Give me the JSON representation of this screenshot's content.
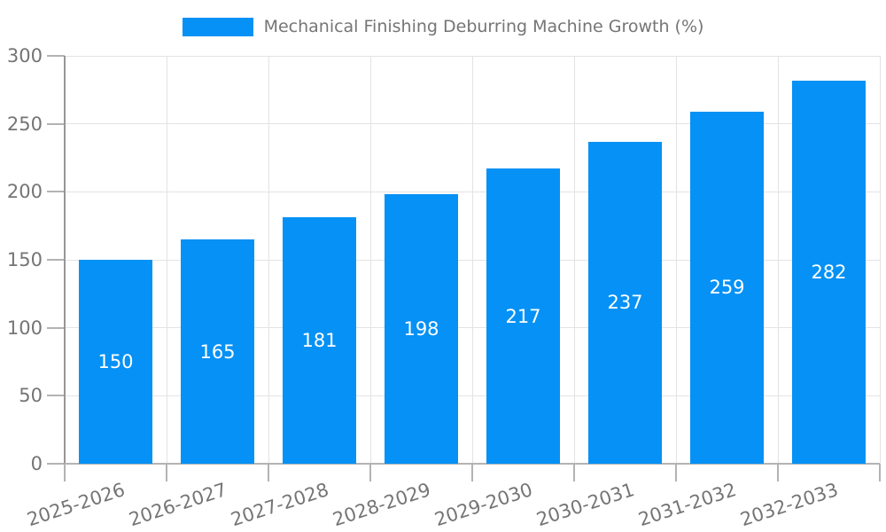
{
  "chart_data": {
    "type": "bar",
    "title": "Mechanical Finishing Deburring Machine Growth (%)",
    "categories": [
      "2025-2026",
      "2026-2027",
      "2027-2028",
      "2028-2029",
      "2029-2030",
      "2030-2031",
      "2031-2032",
      "2032-2033"
    ],
    "values": [
      150,
      165,
      181,
      198,
      217,
      237,
      259,
      282
    ],
    "xlabel": "",
    "ylabel": "",
    "ylim": [
      0,
      300
    ],
    "yticks": [
      0,
      50,
      100,
      150,
      200,
      250,
      300
    ],
    "grid": true,
    "legend_position": "top-center",
    "bar_color": "#0591f5",
    "value_label_color": "#ffffff",
    "axis_text_color": "#757575",
    "gridline_color": "#e3e3e3",
    "axis_line_color": "#969696",
    "tick_color": "#b3b3b3"
  }
}
